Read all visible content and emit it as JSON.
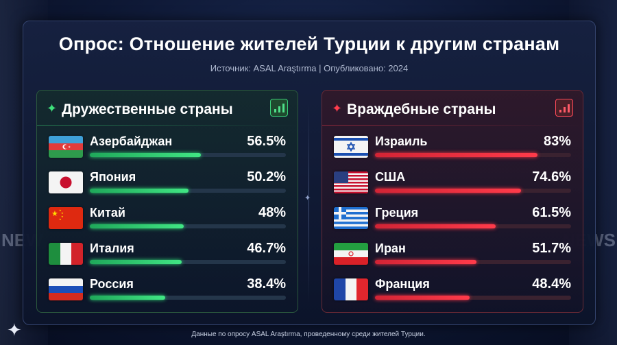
{
  "title": "Опрос: Отношение жителей Турции к другим странам",
  "subtitle": "Источник: ASAL Araştırma  |  Опубликовано: 2024",
  "background": {
    "news_left": "NEW",
    "news_right": "NEWS"
  },
  "friendly": {
    "title": "Дружественные страны",
    "icon": "bar-chart-up-icon",
    "accent": "#3ee07a",
    "rows": [
      {
        "country": "Азербайджан",
        "pct_label": "56.5%",
        "value": 56.5,
        "flag": "azerbaijan-flag"
      },
      {
        "country": "Япония",
        "pct_label": "50.2%",
        "value": 50.2,
        "flag": "japan-flag"
      },
      {
        "country": "Китай",
        "pct_label": "48%",
        "value": 48,
        "flag": "china-flag"
      },
      {
        "country": "Италия",
        "pct_label": "46.7%",
        "value": 46.7,
        "flag": "italy-flag"
      },
      {
        "country": "Россия",
        "pct_label": "38.4%",
        "value": 38.4,
        "flag": "russia-flag"
      }
    ]
  },
  "hostile": {
    "title": "Враждебные страны",
    "icon": "trend-chart-icon",
    "accent": "#ff3d4d",
    "rows": [
      {
        "country": "Израиль",
        "pct_label": "83%",
        "value": 83,
        "flag": "israel-flag"
      },
      {
        "country": "США",
        "pct_label": "74.6%",
        "value": 74.6,
        "flag": "usa-flag"
      },
      {
        "country": "Греция",
        "pct_label": "61.5%",
        "value": 61.5,
        "flag": "greece-flag"
      },
      {
        "country": "Иран",
        "pct_label": "51.7%",
        "value": 51.7,
        "flag": "iran-flag"
      },
      {
        "country": "Франция",
        "pct_label": "48.4%",
        "value": 48.4,
        "flag": "france-flag"
      }
    ]
  },
  "footer": "Данные по опросу ASAL Araştırma, проведенному среди жителей Турции."
}
